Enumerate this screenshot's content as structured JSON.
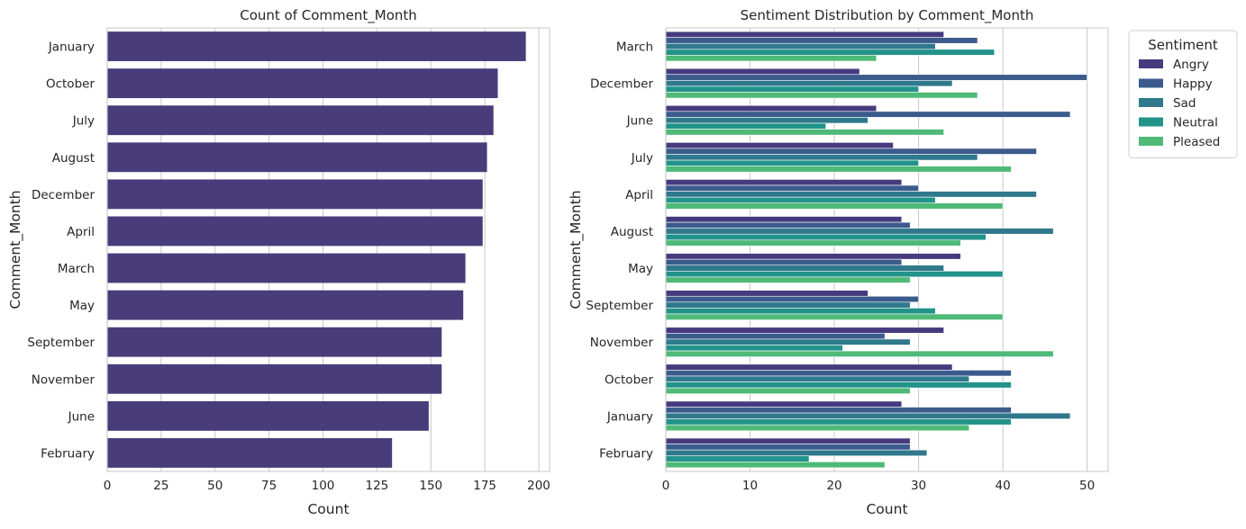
{
  "chart_data": [
    {
      "type": "bar",
      "orientation": "horizontal",
      "title": "Count of Comment_Month",
      "xlabel": "Count",
      "ylabel": "Comment_Month",
      "xlim": [
        0,
        205
      ],
      "xticks": [
        0,
        25,
        50,
        75,
        100,
        125,
        150,
        175,
        200
      ],
      "grid": true,
      "color": "#483d7a",
      "categories": [
        "January",
        "October",
        "July",
        "August",
        "December",
        "April",
        "March",
        "May",
        "September",
        "November",
        "June",
        "February"
      ],
      "values": [
        194,
        181,
        179,
        176,
        174,
        174,
        166,
        165,
        155,
        155,
        149,
        132
      ]
    },
    {
      "type": "bar",
      "orientation": "horizontal",
      "title": "Sentiment Distribution by Comment_Month",
      "xlabel": "Count",
      "ylabel": "Comment_Month",
      "xlim": [
        0,
        52.5
      ],
      "xticks": [
        0,
        10,
        20,
        30,
        40,
        50
      ],
      "grid": true,
      "legend": {
        "title": "Sentiment",
        "position": "outside-upper-right"
      },
      "categories": [
        "March",
        "December",
        "June",
        "July",
        "April",
        "August",
        "May",
        "September",
        "November",
        "October",
        "January",
        "February"
      ],
      "series": [
        {
          "name": "Angry",
          "color": "#463a7f",
          "values": [
            33,
            23,
            25,
            27,
            28,
            28,
            35,
            24,
            33,
            34,
            28,
            29
          ]
        },
        {
          "name": "Happy",
          "color": "#3b5b8c",
          "values": [
            37,
            50,
            48,
            44,
            30,
            29,
            28,
            30,
            26,
            41,
            41,
            29
          ]
        },
        {
          "name": "Sad",
          "color": "#30788c",
          "values": [
            32,
            34,
            24,
            37,
            44,
            46,
            33,
            29,
            29,
            36,
            48,
            31
          ]
        },
        {
          "name": "Neutral",
          "color": "#22938a",
          "values": [
            39,
            30,
            19,
            30,
            32,
            38,
            40,
            32,
            21,
            41,
            41,
            17
          ]
        },
        {
          "name": "Pleased",
          "color": "#4fb978",
          "values": [
            25,
            37,
            33,
            41,
            40,
            35,
            29,
            40,
            46,
            29,
            36,
            26
          ]
        }
      ]
    }
  ]
}
